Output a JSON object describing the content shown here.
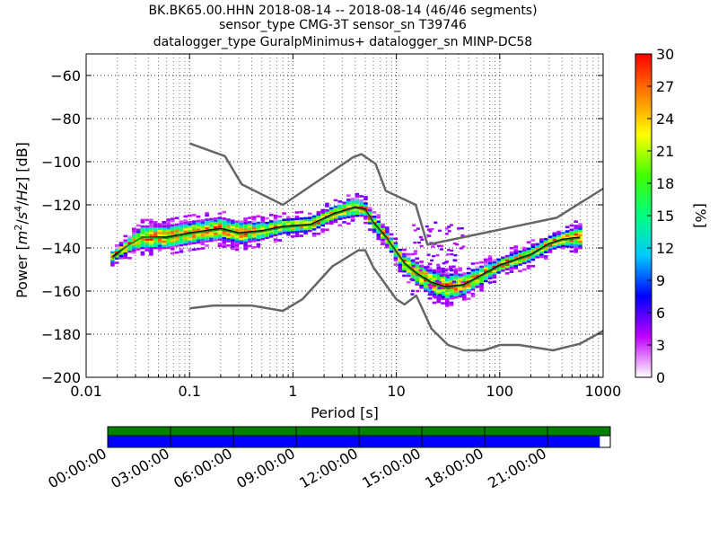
{
  "chart_data": {
    "type": "heatmap",
    "title_lines": [
      "BK.BK65.00.HHN   2018-08-14 -- 2018-08-14  (46/46 segments)",
      "sensor_type CMG-3T sensor_sn T39746",
      "datalogger_type GuralpMinimus+ datalogger_sn MINP-DC58"
    ],
    "xlabel": "Period [s]",
    "ylabel": "Power [m²/s⁴/Hz] [dB]",
    "x_scale": "log",
    "xlim": [
      0.01,
      1000
    ],
    "ylim": [
      -200,
      -50
    ],
    "x_ticks": [
      0.01,
      0.1,
      1,
      10,
      100,
      1000
    ],
    "x_tick_labels": [
      "0.01",
      "0.1",
      "1",
      "10",
      "100",
      "1000"
    ],
    "y_ticks": [
      -200,
      -180,
      -160,
      -140,
      -120,
      -100,
      -80,
      -60
    ],
    "y_tick_labels": [
      "−200",
      "−180",
      "−160",
      "−140",
      "−120",
      "−100",
      "−80",
      "−60"
    ],
    "grid": true,
    "colorbar": {
      "label": "[%]",
      "range": [
        0,
        30
      ],
      "ticks": [
        0,
        3,
        6,
        9,
        12,
        15,
        18,
        21,
        24,
        27,
        30
      ],
      "tick_labels": [
        "0",
        "3",
        "6",
        "9",
        "12",
        "15",
        "18",
        "21",
        "24",
        "27",
        "30"
      ],
      "colors": [
        "#ffffff",
        "#c000ff",
        "#0000ff",
        "#00c8ff",
        "#00ff80",
        "#40ff00",
        "#ffff00",
        "#ff8000",
        "#ff0000"
      ]
    },
    "series": [
      {
        "role": "NHNM",
        "color": "#666666",
        "x": [
          0.1,
          0.22,
          0.32,
          0.8,
          3.8,
          4.6,
          6.3,
          7.9,
          15.4,
          20,
          354.8,
          1000
        ],
        "y": [
          -91.5,
          -97.4,
          -110.5,
          -120,
          -98,
          -96.5,
          -101,
          -113.5,
          -120,
          -138.5,
          -126,
          -112.5
        ]
      },
      {
        "role": "NLNM",
        "color": "#666666",
        "x": [
          0.1,
          0.17,
          0.4,
          0.8,
          1.24,
          2.4,
          4.3,
          5,
          6,
          10,
          12,
          15.6,
          21.9,
          31.6,
          45,
          70,
          101,
          154,
          328,
          600,
          1000
        ],
        "y": [
          -168,
          -166.7,
          -166.7,
          -169.2,
          -163.7,
          -148.6,
          -141.1,
          -141.1,
          -149,
          -163.8,
          -166.2,
          -162.1,
          -177.5,
          -185,
          -187.5,
          -187.5,
          -185,
          -185,
          -187.5,
          -184.4,
          -178.5
        ]
      },
      {
        "role": "median",
        "color": "#000000",
        "x": [
          0.018,
          0.025,
          0.035,
          0.06,
          0.1,
          0.2,
          0.3,
          0.5,
          0.8,
          1.5,
          2.5,
          4,
          5,
          6,
          8,
          12,
          16,
          22,
          30,
          45,
          70,
          100,
          150,
          200,
          300,
          400,
          600
        ],
        "y": [
          -144,
          -139,
          -135,
          -135,
          -133,
          -131,
          -133,
          -132,
          -130,
          -129,
          -124,
          -121,
          -122,
          -128,
          -135,
          -147,
          -152,
          -156,
          -158,
          -157,
          -152,
          -148,
          -145,
          -143,
          -138,
          -136,
          -135
        ]
      },
      {
        "role": "mode",
        "color": "#1a8c1a",
        "x": [
          0.018,
          0.025,
          0.035,
          0.06,
          0.1,
          0.2,
          0.3,
          0.5,
          0.8,
          1.5,
          2.5,
          4,
          5,
          6,
          8,
          12,
          16,
          22,
          30,
          45,
          70,
          100,
          150,
          200,
          300,
          400,
          600
        ],
        "y": [
          -145,
          -139,
          -135,
          -135.5,
          -133.5,
          -131.5,
          -133.5,
          -132.5,
          -130.5,
          -129.5,
          -124.5,
          -121.5,
          -122.5,
          -128.5,
          -135.5,
          -147.5,
          -152.5,
          -156.5,
          -158.5,
          -157.5,
          -152.5,
          -148.5,
          -145.5,
          -143.5,
          -138.5,
          -136.5,
          -135.5
        ]
      }
    ],
    "psd_density": {
      "description": "probability density cloud around the median, percent of segments",
      "x": [
        0.018,
        0.025,
        0.035,
        0.06,
        0.1,
        0.2,
        0.3,
        0.5,
        0.8,
        1.5,
        2.5,
        4,
        5,
        6,
        8,
        12,
        16,
        22,
        30,
        45,
        70,
        100,
        150,
        200,
        300,
        400,
        600
      ],
      "center": [
        -144,
        -139,
        -135,
        -135,
        -133,
        -131,
        -133,
        -132,
        -130,
        -129,
        -124,
        -121,
        -122,
        -128,
        -135,
        -147,
        -152,
        -156,
        -158,
        -157,
        -152,
        -148,
        -145,
        -143,
        -138,
        -136,
        -135
      ],
      "half_width": [
        2,
        3,
        5,
        5,
        5,
        5,
        5,
        4,
        3,
        3,
        3,
        4,
        3,
        3,
        3,
        4,
        5,
        6,
        6,
        5,
        4,
        3,
        3,
        3,
        3,
        3,
        5
      ]
    },
    "time_coverage": {
      "tick_labels": [
        "00:00:00",
        "03:00:00",
        "06:00:00",
        "09:00:00",
        "12:00:00",
        "15:00:00",
        "18:00:00",
        "21:00:00"
      ],
      "tick_hours": [
        0,
        3,
        6,
        9,
        12,
        15,
        18,
        21
      ],
      "range_hours": [
        0,
        24
      ],
      "top_bar_color": "#008000",
      "bottom_bar_color": "#0000ff",
      "data_coverage_hours": [
        0,
        23.5
      ]
    }
  }
}
